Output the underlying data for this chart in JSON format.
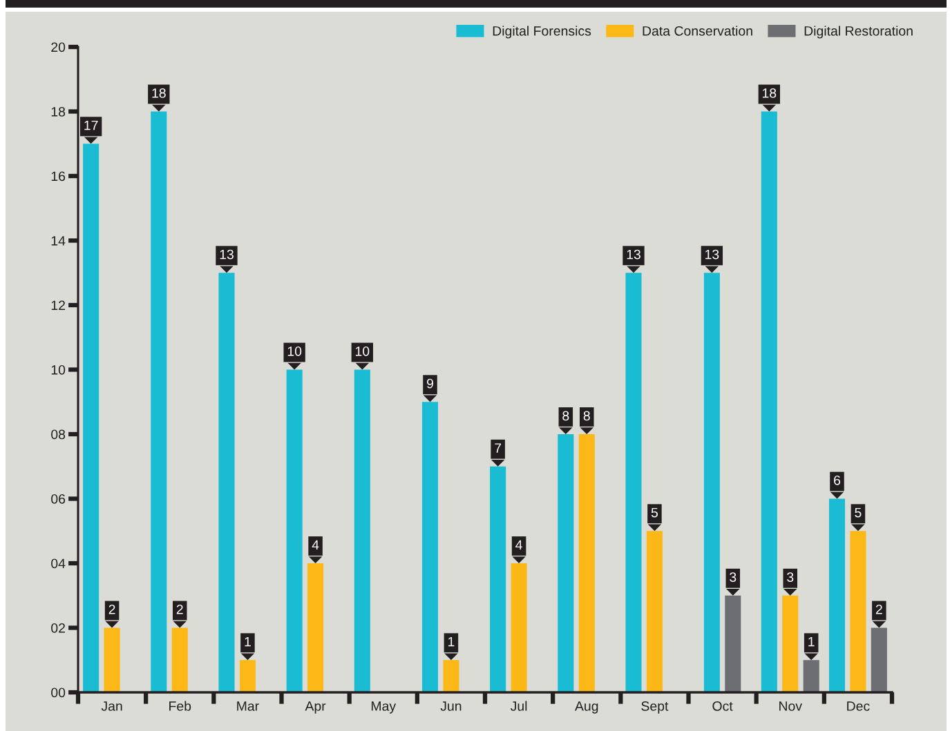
{
  "chart_data": {
    "type": "bar",
    "categories": [
      "Jan",
      "Feb",
      "Mar",
      "Apr",
      "May",
      "Jun",
      "Jul",
      "Aug",
      "Sept",
      "Oct",
      "Nov",
      "Dec"
    ],
    "series": [
      {
        "name": "Digital Forensics",
        "color": "#19bcd3",
        "values": [
          17,
          18,
          13,
          10,
          10,
          9,
          7,
          8,
          13,
          13,
          18,
          6
        ],
        "value_labels": [
          "17",
          "18",
          "13",
          "10",
          "10",
          "9",
          "7",
          "8",
          "13",
          "13",
          "18",
          "6"
        ]
      },
      {
        "name": "Data Conservation",
        "color": "#fbb817",
        "values": [
          2,
          2,
          1,
          4,
          null,
          1,
          4,
          8,
          5,
          null,
          3,
          5
        ],
        "value_labels": [
          "2",
          "2",
          "1",
          "4",
          null,
          "1",
          "4",
          "8",
          "5",
          null,
          "3",
          "5"
        ]
      },
      {
        "name": "Digital Restoration",
        "color": "#6d6e71",
        "values": [
          null,
          null,
          null,
          null,
          null,
          null,
          null,
          null,
          null,
          3,
          1,
          2
        ],
        "value_labels": [
          null,
          null,
          null,
          null,
          null,
          null,
          null,
          null,
          null,
          "3",
          "1",
          "2"
        ]
      }
    ],
    "ylim": [
      0,
      20
    ],
    "yticks": [
      {
        "value": 0,
        "label": "00"
      },
      {
        "value": 2,
        "label": "02"
      },
      {
        "value": 4,
        "label": "04"
      },
      {
        "value": 6,
        "label": "06"
      },
      {
        "value": 8,
        "label": "08"
      },
      10,
      12,
      14,
      16,
      18,
      20
    ],
    "legend": "top right"
  }
}
